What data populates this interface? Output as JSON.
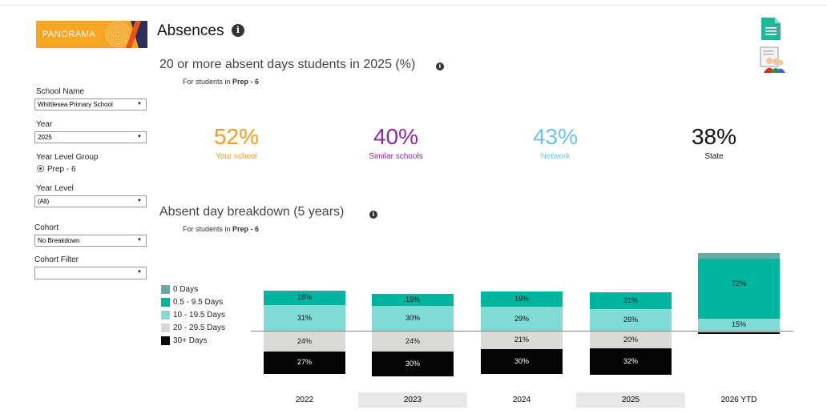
{
  "logo": {
    "text": "PANORAMA"
  },
  "page": {
    "title": "Absences"
  },
  "filters": {
    "school_name": {
      "label": "School Name",
      "value": "Whittlesea Primary School"
    },
    "year": {
      "label": "Year",
      "value": "2025"
    },
    "year_level_group": {
      "label": "Year Level Group",
      "option": "Prep - 6"
    },
    "year_level": {
      "label": "Year Level",
      "value": "(All)"
    },
    "cohort": {
      "label": "Cohort",
      "value": "No Breakdown"
    },
    "cohort_filter": {
      "label": "Cohort Filter",
      "value": ""
    }
  },
  "kpi_section": {
    "title": "20 or more absent days students in 2025 (%)",
    "subtitle_prefix": "For students in ",
    "subtitle_group": "Prep - 6",
    "items": [
      {
        "value": "52%",
        "label": "Your school",
        "color": "#f39c1f"
      },
      {
        "value": "40%",
        "label": "Similar schools",
        "color": "#8e2aa5"
      },
      {
        "value": "43%",
        "label": "Network",
        "color": "#6ec4e2"
      },
      {
        "value": "38%",
        "label": "State",
        "color": "#111111"
      }
    ]
  },
  "breakdown_section": {
    "title": "Absent day breakdown (5 years)",
    "subtitle_prefix": "For students in ",
    "subtitle_group": "Prep - 6"
  },
  "chart_data": {
    "type": "bar",
    "stacked": "diverging",
    "categories": [
      "2022",
      "2023",
      "2024",
      "2025",
      "2026 YTD"
    ],
    "series": [
      {
        "name": "0 Days",
        "color": "#6aaaa5",
        "values": [
          0,
          0,
          0,
          0,
          7
        ],
        "labels": [
          "",
          "",
          "",
          "",
          ""
        ]
      },
      {
        "name": "0.5 - 9.5 Days",
        "color": "#00b5a0",
        "values": [
          18,
          15,
          19,
          21,
          72
        ],
        "labels": [
          "18%",
          "15%",
          "19%",
          "21%",
          "72%"
        ]
      },
      {
        "name": "10 - 19.5 Days",
        "color": "#7fdbd3",
        "values": [
          31,
          30,
          29,
          26,
          15
        ],
        "labels": [
          "31%",
          "30%",
          "29%",
          "26%",
          "15%"
        ]
      },
      {
        "name": "20 - 29.5 Days",
        "color": "#d9d9d5",
        "values": [
          24,
          24,
          21,
          20,
          1
        ],
        "labels": [
          "24%",
          "24%",
          "21%",
          "20%",
          ""
        ]
      },
      {
        "name": "30+ Days",
        "color": "#050505",
        "values": [
          27,
          30,
          30,
          32,
          2
        ],
        "labels": [
          "27%",
          "30%",
          "30%",
          "32%",
          ""
        ]
      }
    ],
    "shaded_categories": [
      "2023",
      "2025"
    ],
    "legend_position": "left"
  },
  "icons": {
    "report": "document-icon",
    "students": "students-group-icon",
    "info": "info-icon"
  }
}
